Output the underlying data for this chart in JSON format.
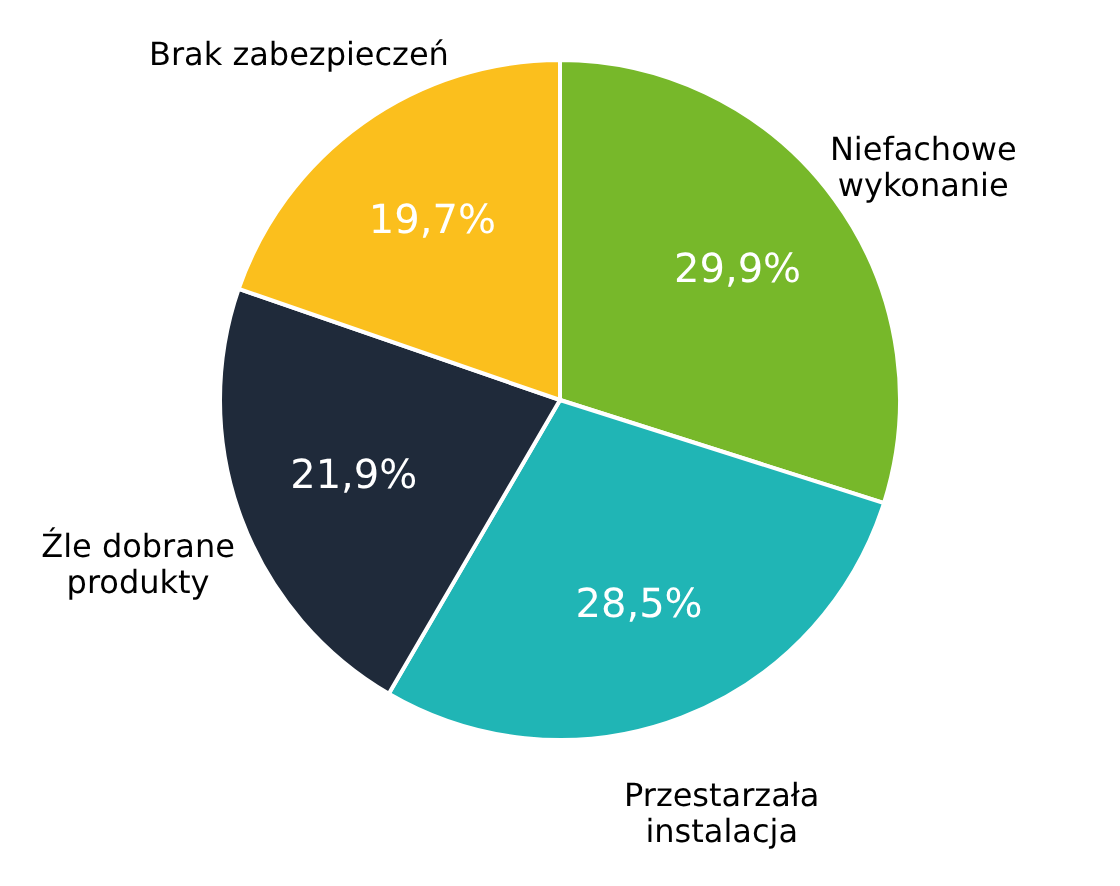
{
  "chart_data": {
    "type": "pie",
    "categories": [
      "Niefachowe\nwykonanie",
      "Przestarzała\ninstalacja",
      "Źle dobrane\nprodukty",
      "Brak zabezpieczeń"
    ],
    "values": [
      29.9,
      28.5,
      21.9,
      19.7
    ],
    "value_labels": [
      "29,9%",
      "28,5%",
      "21,9%",
      "19,7%"
    ],
    "colors": [
      "#77b82a",
      "#20b5b5",
      "#1f2a3a",
      "#fbbf1d"
    ]
  }
}
